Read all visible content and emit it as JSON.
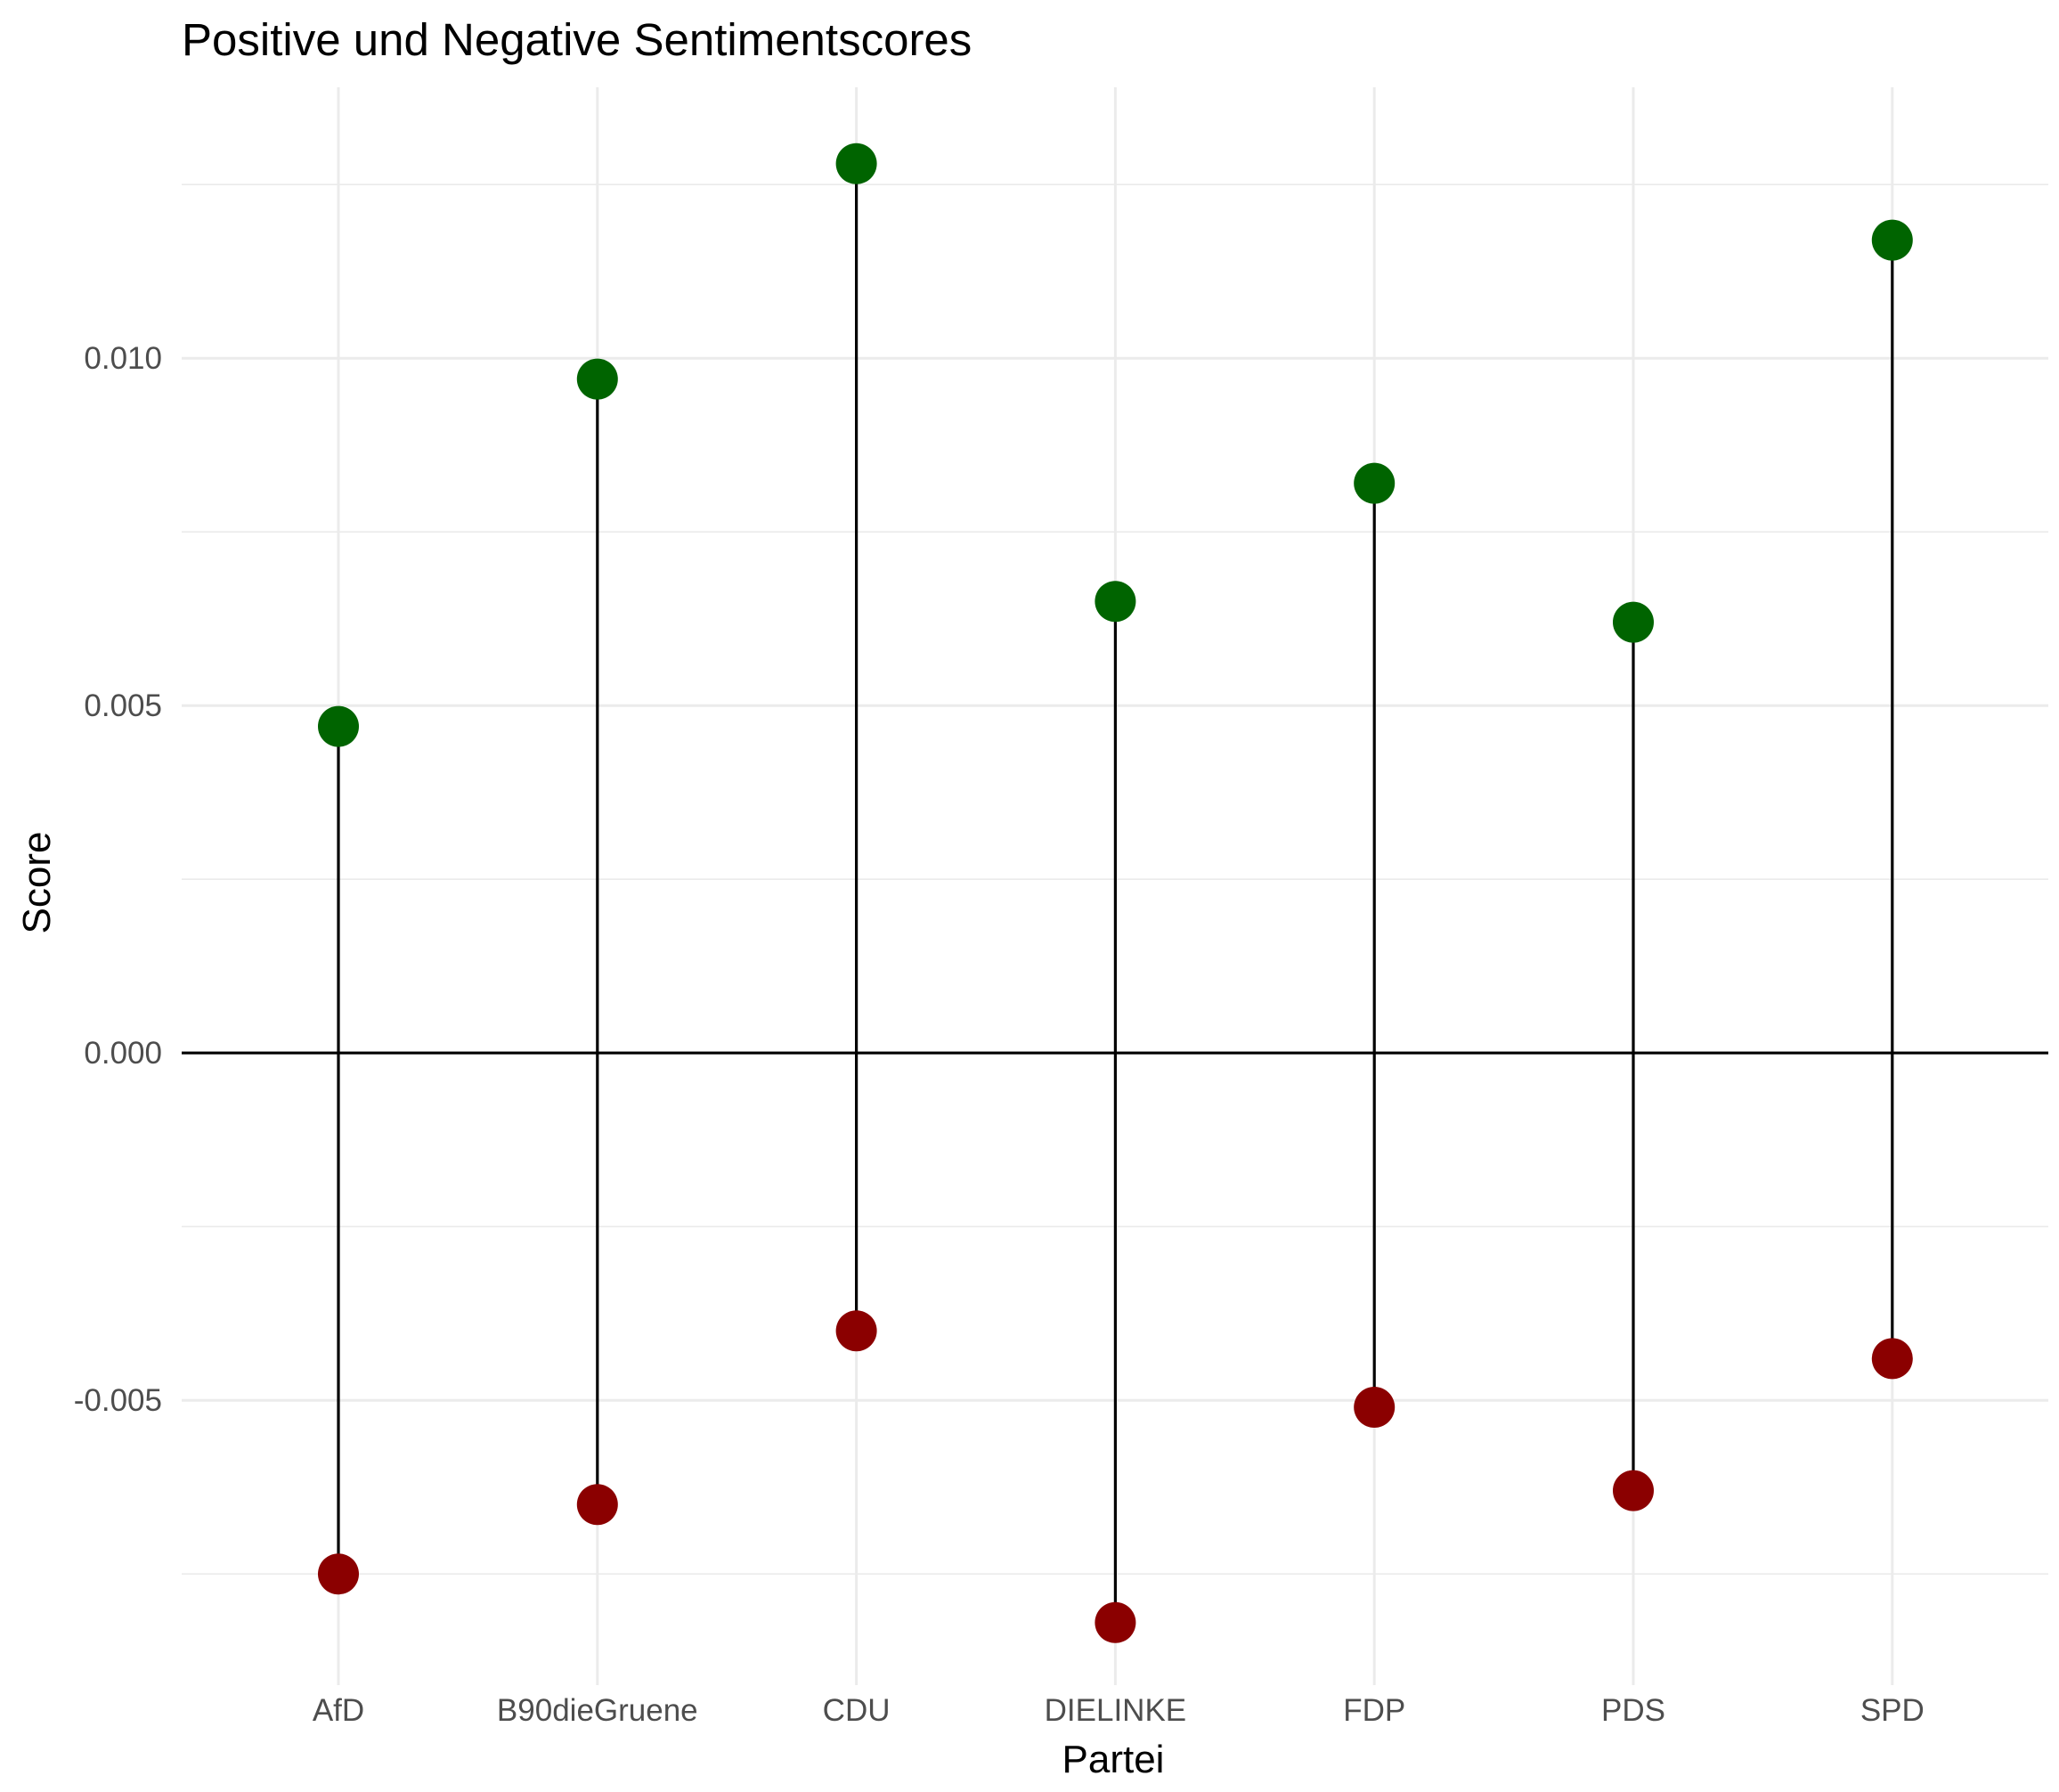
{
  "chart_data": {
    "type": "scatter",
    "subtype": "dumbbell",
    "title": "Positive und Negative Sentimentscores",
    "xlabel": "Partei",
    "ylabel": "Score",
    "categories": [
      "AfD",
      "B90dieGruene",
      "CDU",
      "DIELINKE",
      "FDP",
      "PDS",
      "SPD"
    ],
    "series": [
      {
        "values": [
          0.0047,
          0.0097,
          0.0128,
          0.0065,
          0.0082,
          0.0062,
          0.0117
        ],
        "color": "#006400"
      },
      {
        "values": [
          -0.0075,
          -0.0065,
          -0.004,
          -0.0082,
          -0.0051,
          -0.0063,
          -0.0044
        ],
        "color": "#8b0000"
      }
    ],
    "yticks": [
      -0.005,
      0.0,
      0.005,
      0.01
    ],
    "ytick_labels": [
      "-0.005",
      "0.000",
      "0.005",
      "0.010"
    ],
    "ylim": [
      -0.0091,
      0.0139
    ],
    "reference_line_y": 0,
    "segment_color": "#000000",
    "grid": true,
    "legend": "none"
  }
}
